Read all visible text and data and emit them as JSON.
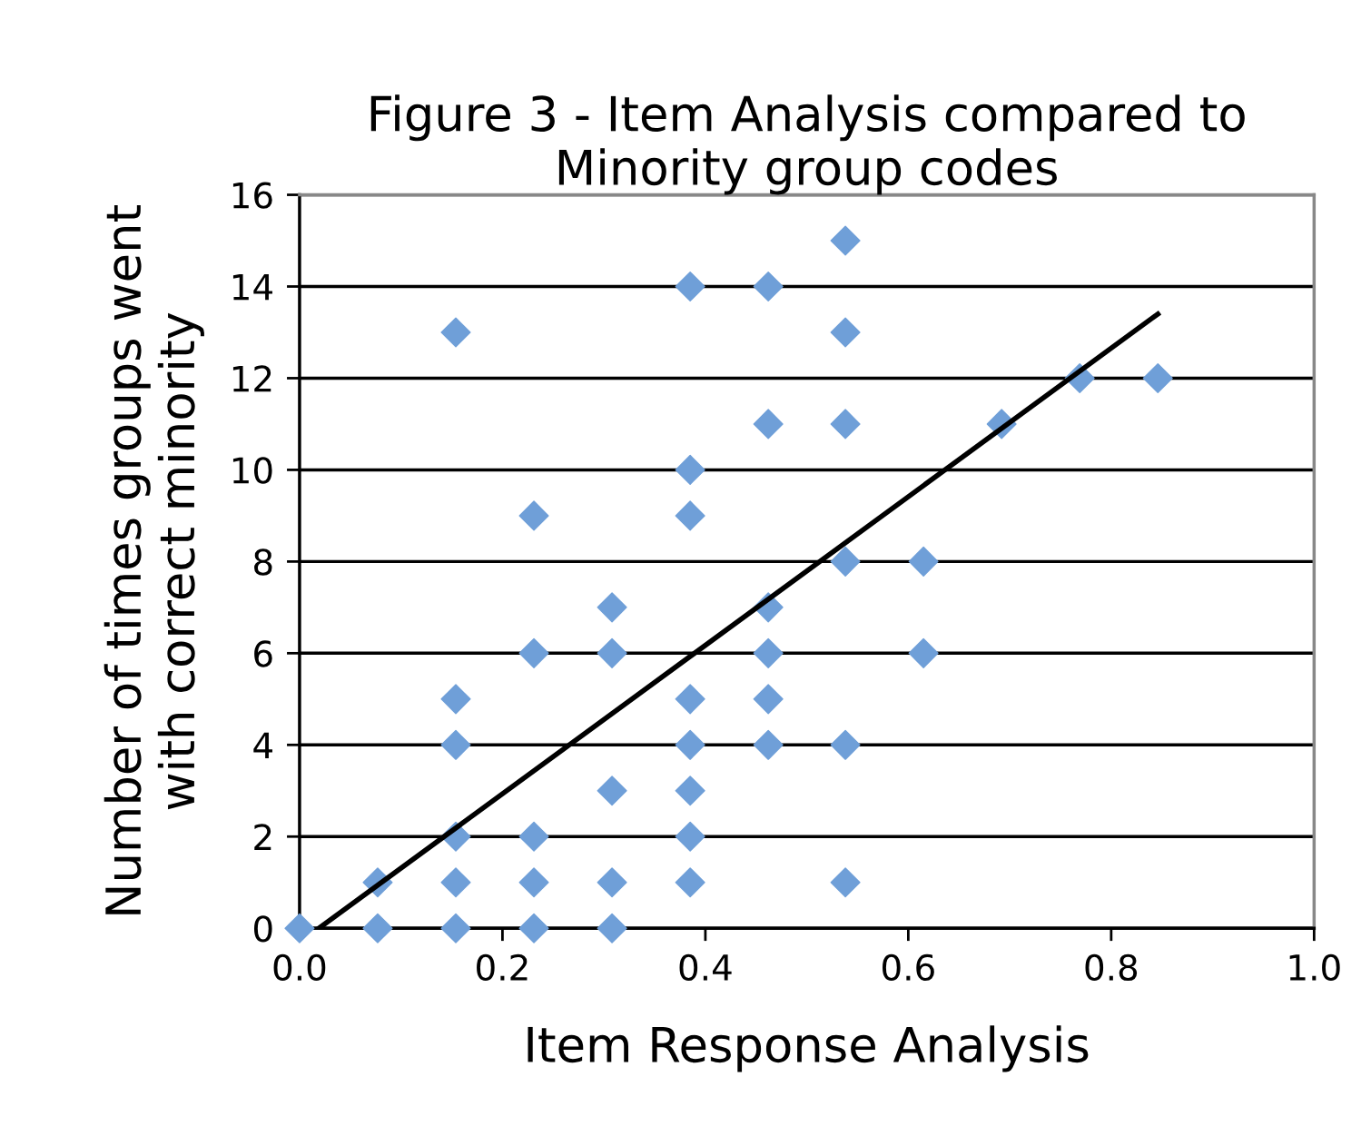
{
  "chart_data": {
    "type": "scatter",
    "title": "Figure 3 - Item Analysis compared to\nMinority group codes",
    "xlabel": "Item Response Analysis",
    "ylabel": "Number of times groups went\nwith correct minority",
    "series": [
      {
        "color": "#6f9fd8",
        "marker": "diamond",
        "x": [
          0,
          0.077,
          0.077,
          0.154,
          0.154,
          0.154,
          0.154,
          0.154,
          0.154,
          0.231,
          0.231,
          0.231,
          0.231,
          0.231,
          0.308,
          0.308,
          0.308,
          0.308,
          0.308,
          0.385,
          0.385,
          0.385,
          0.385,
          0.385,
          0.385,
          0.385,
          0.385,
          0.462,
          0.462,
          0.462,
          0.462,
          0.462,
          0.462,
          0.538,
          0.538,
          0.538,
          0.538,
          0.538,
          0.538,
          0.615,
          0.615,
          0.692,
          0.769,
          0.846
        ],
        "values": [
          0,
          0,
          1,
          0,
          1,
          2,
          4,
          5,
          13,
          0,
          1,
          2,
          6,
          9,
          0,
          1,
          3,
          6,
          7,
          1,
          2,
          3,
          4,
          5,
          9,
          10,
          14,
          4,
          5,
          6,
          7,
          11,
          14,
          1,
          4,
          8,
          11,
          13,
          15,
          6,
          8,
          11,
          12,
          12
        ]
      },
      {
        "type": "line",
        "color": "#000000",
        "line_style": "solid",
        "x": [
          0.019,
          0.846
        ],
        "values": [
          0,
          13.4
        ]
      }
    ],
    "xlim": [
      0,
      1
    ],
    "xticks": [
      {
        "value": 0,
        "label": "0.0"
      },
      {
        "value": 0.2,
        "label": "0.2"
      },
      {
        "value": 0.4,
        "label": "0.4"
      },
      {
        "value": 0.6,
        "label": "0.6"
      },
      {
        "value": 0.8,
        "label": "0.8"
      },
      {
        "value": 1,
        "label": "1.0"
      }
    ],
    "ylim": [
      0,
      16
    ],
    "yticks": [
      0,
      2,
      4,
      6,
      8,
      10,
      12,
      14,
      16
    ],
    "grid": "y",
    "legend": false
  }
}
